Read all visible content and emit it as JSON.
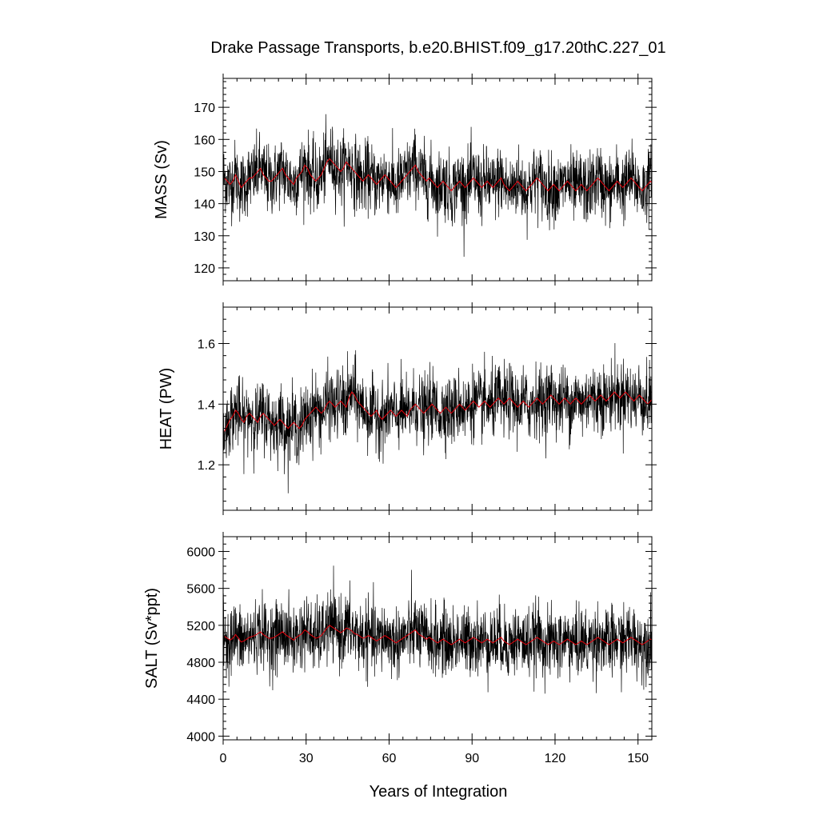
{
  "chart_data": [
    {
      "type": "line",
      "panel": "mass",
      "title": "Drake Passage Transports, b.e20.BHIST.f09_g17.20thC.227_01",
      "ylabel": "MASS (Sv)",
      "xlabel": "",
      "xlim": [
        0,
        155
      ],
      "ylim": [
        116,
        179
      ],
      "yticks": [
        120,
        130,
        140,
        150,
        160,
        170
      ],
      "xticks": [
        0,
        30,
        60,
        90,
        120,
        150
      ],
      "colors": {
        "raw": "#000000",
        "smoothed": "#e8000b"
      },
      "series": [
        {
          "values_note": "",
          "x_step": 1,
          "kind": "raw_monthly",
          "mean_values": [
            148,
            147,
            146,
            147,
            149,
            147,
            145,
            146,
            147,
            148,
            148,
            149,
            150,
            151,
            149,
            148,
            147,
            147,
            148,
            149,
            150,
            151,
            149,
            148,
            147,
            146,
            148,
            149,
            150,
            152,
            151,
            149,
            148,
            147,
            148,
            149,
            151,
            153,
            154,
            153,
            152,
            151,
            150,
            151,
            153,
            152,
            151,
            150,
            149,
            148,
            147,
            148,
            149,
            148,
            147,
            146,
            147,
            148,
            149,
            148,
            147,
            146,
            145,
            146,
            147,
            148,
            149,
            150,
            151,
            152,
            150,
            149,
            148,
            147,
            148,
            147,
            146,
            145,
            146,
            147,
            146,
            145,
            144,
            145,
            146,
            147,
            146,
            145,
            146,
            147,
            148,
            147,
            146,
            145,
            146,
            147,
            146,
            145,
            146,
            147,
            148,
            146,
            145,
            144,
            145,
            146,
            147,
            146,
            145,
            144,
            145,
            146,
            147,
            148,
            147,
            146,
            145,
            144,
            145,
            146,
            145,
            144,
            145,
            146,
            147,
            146,
            145,
            144,
            145,
            146,
            145,
            144,
            145,
            146,
            147,
            148,
            147,
            146,
            145,
            144,
            145,
            146,
            147,
            146,
            145,
            146,
            147,
            148,
            147,
            146,
            145,
            144,
            145,
            146,
            147,
            146
          ]
        },
        {
          "kind": "smoothed"
        }
      ]
    },
    {
      "type": "line",
      "panel": "heat",
      "ylabel": "HEAT (PW)",
      "xlabel": "",
      "xlim": [
        0,
        155
      ],
      "ylim": [
        1.05,
        1.72
      ],
      "yticks": [
        1.2,
        1.4,
        1.6
      ],
      "xticks": [
        0,
        30,
        60,
        90,
        120,
        150
      ],
      "colors": {
        "raw": "#000000",
        "smoothed": "#e8000b"
      },
      "series": [
        {
          "kind": "raw_monthly",
          "mean_values": [
            1.31,
            1.33,
            1.35,
            1.36,
            1.38,
            1.37,
            1.35,
            1.34,
            1.36,
            1.37,
            1.36,
            1.35,
            1.34,
            1.36,
            1.37,
            1.36,
            1.35,
            1.34,
            1.33,
            1.34,
            1.35,
            1.34,
            1.33,
            1.32,
            1.33,
            1.34,
            1.33,
            1.32,
            1.33,
            1.35,
            1.36,
            1.37,
            1.38,
            1.39,
            1.38,
            1.37,
            1.38,
            1.4,
            1.41,
            1.4,
            1.39,
            1.4,
            1.41,
            1.4,
            1.39,
            1.42,
            1.44,
            1.43,
            1.41,
            1.4,
            1.39,
            1.38,
            1.37,
            1.36,
            1.37,
            1.38,
            1.36,
            1.35,
            1.36,
            1.37,
            1.38,
            1.37,
            1.36,
            1.37,
            1.38,
            1.37,
            1.36,
            1.38,
            1.39,
            1.4,
            1.39,
            1.38,
            1.37,
            1.38,
            1.39,
            1.4,
            1.39,
            1.38,
            1.37,
            1.38,
            1.39,
            1.38,
            1.37,
            1.38,
            1.39,
            1.4,
            1.39,
            1.38,
            1.39,
            1.4,
            1.41,
            1.4,
            1.39,
            1.4,
            1.41,
            1.4,
            1.39,
            1.4,
            1.41,
            1.42,
            1.41,
            1.4,
            1.41,
            1.42,
            1.41,
            1.4,
            1.39,
            1.4,
            1.41,
            1.4,
            1.39,
            1.4,
            1.41,
            1.42,
            1.41,
            1.4,
            1.41,
            1.42,
            1.43,
            1.42,
            1.41,
            1.4,
            1.41,
            1.42,
            1.41,
            1.4,
            1.41,
            1.42,
            1.41,
            1.4,
            1.41,
            1.42,
            1.43,
            1.42,
            1.41,
            1.42,
            1.43,
            1.42,
            1.41,
            1.42,
            1.43,
            1.44,
            1.43,
            1.42,
            1.43,
            1.44,
            1.43,
            1.42,
            1.41,
            1.42,
            1.43,
            1.42,
            1.41,
            1.4,
            1.41,
            1.42
          ]
        },
        {
          "kind": "smoothed"
        }
      ]
    },
    {
      "type": "line",
      "panel": "salt",
      "ylabel": "SALT (Sv*ppt)",
      "xlabel": "Years of Integration",
      "xlim": [
        0,
        155
      ],
      "ylim": [
        3960,
        6160
      ],
      "yticks": [
        4000,
        4400,
        4800,
        5200,
        5600,
        6000
      ],
      "xticks": [
        0,
        30,
        60,
        90,
        120,
        150
      ],
      "colors": {
        "raw": "#000000",
        "smoothed": "#e8000b"
      },
      "series": [
        {
          "kind": "raw_monthly",
          "mean_values": [
            5080,
            5060,
            5040,
            5060,
            5100,
            5060,
            5020,
            5030,
            5050,
            5070,
            5080,
            5090,
            5110,
            5130,
            5100,
            5080,
            5060,
            5060,
            5070,
            5090,
            5110,
            5130,
            5100,
            5080,
            5060,
            5040,
            5070,
            5090,
            5110,
            5150,
            5130,
            5100,
            5080,
            5060,
            5070,
            5090,
            5130,
            5170,
            5200,
            5180,
            5160,
            5140,
            5120,
            5140,
            5170,
            5160,
            5140,
            5110,
            5100,
            5080,
            5060,
            5070,
            5090,
            5070,
            5050,
            5030,
            5050,
            5070,
            5090,
            5070,
            5050,
            5030,
            5010,
            5030,
            5050,
            5070,
            5090,
            5110,
            5130,
            5150,
            5110,
            5090,
            5070,
            5050,
            5070,
            5050,
            5030,
            5010,
            5030,
            5050,
            5030,
            5010,
            4990,
            5010,
            5030,
            5050,
            5030,
            5010,
            5030,
            5050,
            5070,
            5050,
            5030,
            5010,
            5030,
            5050,
            5030,
            5010,
            5030,
            5050,
            5070,
            5030,
            5010,
            4990,
            5010,
            5030,
            5050,
            5030,
            5010,
            4990,
            5010,
            5030,
            5050,
            5070,
            5050,
            5030,
            5010,
            4990,
            5010,
            5030,
            5010,
            4990,
            5010,
            5030,
            5050,
            5030,
            5010,
            4990,
            5010,
            5030,
            5010,
            4990,
            5010,
            5030,
            5050,
            5070,
            5050,
            5030,
            5010,
            4990,
            5010,
            5030,
            5050,
            5030,
            5010,
            5030,
            5050,
            5070,
            5050,
            5030,
            5010,
            4990,
            5010,
            5030,
            5050,
            5030
          ]
        },
        {
          "kind": "smoothed"
        }
      ]
    }
  ]
}
